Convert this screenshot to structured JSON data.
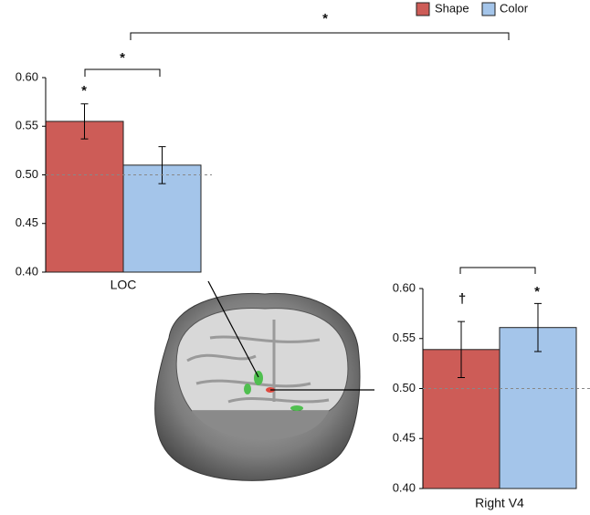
{
  "chart_data": [
    {
      "type": "bar",
      "categories": [
        "LOC"
      ],
      "series": [
        {
          "name": "Shape",
          "color": "#cd5c57",
          "values": [
            0.555
          ],
          "errors": [
            0.018
          ]
        },
        {
          "name": "Color",
          "color": "#a4c5ea",
          "values": [
            0.51
          ],
          "errors": [
            0.019
          ]
        }
      ],
      "ylim": [
        0.4,
        0.6
      ],
      "yticks": [
        {
          "value": 0.4,
          "label": "0.40"
        },
        {
          "value": 0.45,
          "label": "0.45"
        },
        {
          "value": 0.5,
          "label": "0.50"
        },
        {
          "value": 0.55,
          "label": "0.55"
        },
        {
          "value": 0.6,
          "label": "0.60"
        }
      ],
      "reference_line": 0.5,
      "annotations": [
        "*",
        "*"
      ]
    },
    {
      "type": "bar",
      "categories": [
        "Right V4"
      ],
      "series": [
        {
          "color": "#cd5c57",
          "values": [
            0.539
          ],
          "errors": [
            0.028
          ]
        },
        {
          "color": "#a4c5ea",
          "values": [
            0.561
          ],
          "errors": [
            0.024
          ]
        }
      ],
      "ylim": [
        0.4,
        0.6
      ],
      "yticks": [
        {
          "value": 0.4,
          "label": "0.40"
        },
        {
          "value": 0.45,
          "label": "0.45"
        },
        {
          "value": 0.5,
          "label": "0.50"
        },
        {
          "value": 0.55,
          "label": "0.55"
        },
        {
          "value": 0.6,
          "label": "0.60"
        }
      ],
      "reference_line": 0.5,
      "annotations": [
        "†",
        "*"
      ]
    }
  ],
  "annotations": [
    "*"
  ]
}
